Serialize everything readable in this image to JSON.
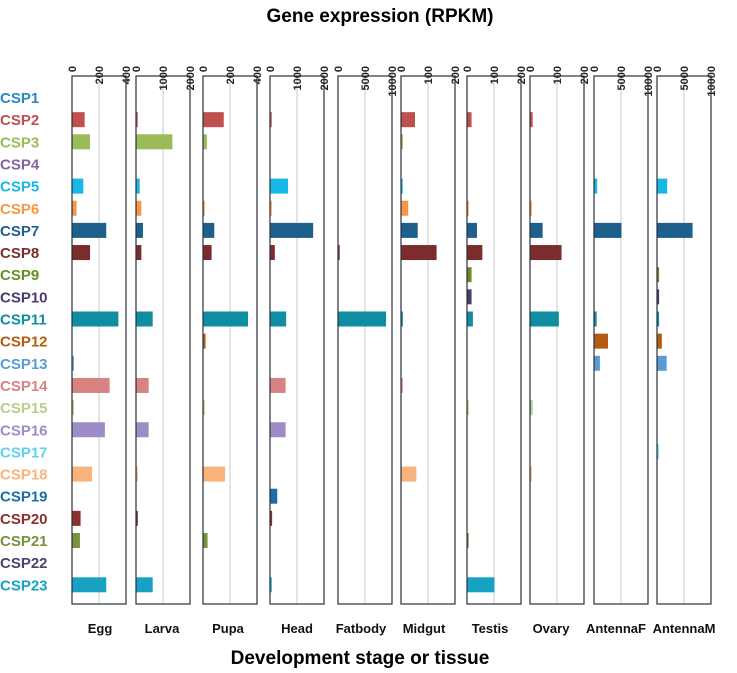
{
  "chart_data": {
    "type": "bar",
    "orientation": "horizontal",
    "title": "Gene expression (RPKM)",
    "xlabel": "Development stage or tissue",
    "categories": [
      "CSP1",
      "CSP2",
      "CSP3",
      "CSP4",
      "CSP5",
      "CSP6",
      "CSP7",
      "CSP8",
      "CSP9",
      "CSP10",
      "CSP11",
      "CSP12",
      "CSP13",
      "CSP14",
      "CSP15",
      "CSP16",
      "CSP17",
      "CSP18",
      "CSP19",
      "CSP20",
      "CSP21",
      "CSP22",
      "CSP23"
    ],
    "category_colors": [
      "#2e86c1",
      "#c0504d",
      "#9bbb59",
      "#8064a2",
      "#17b7e6",
      "#f79646",
      "#1f5f8b",
      "#7b2c2c",
      "#6b8e23",
      "#4b3b6b",
      "#0e8ea0",
      "#b35c0f",
      "#5b9bd5",
      "#d98282",
      "#b4d08a",
      "#9e8cc7",
      "#5fd3ec",
      "#fab27b",
      "#1c6ea4",
      "#8b2f2f",
      "#76923c",
      "#4d4270",
      "#17a2c4"
    ],
    "panels": [
      {
        "name": "Egg",
        "xlim": [
          0,
          400
        ],
        "ticks": [
          "0",
          "200",
          "400"
        ],
        "values": [
          0,
          90,
          130,
          0,
          80,
          30,
          250,
          130,
          0,
          0,
          340,
          0,
          10,
          275,
          10,
          240,
          0,
          145,
          0,
          60,
          55,
          0,
          250
        ]
      },
      {
        "name": "Larva",
        "xlim": [
          0,
          2000
        ],
        "ticks": [
          "0",
          "1000",
          "2000"
        ],
        "values": [
          0,
          40,
          1330,
          0,
          120,
          180,
          240,
          180,
          0,
          0,
          600,
          0,
          0,
          450,
          0,
          450,
          0,
          20,
          0,
          50,
          0,
          0,
          600
        ]
      },
      {
        "name": "Pupa",
        "xlim": [
          0,
          400
        ],
        "ticks": [
          "0",
          "200",
          "400"
        ],
        "values": [
          0,
          150,
          25,
          0,
          0,
          5,
          80,
          60,
          0,
          0,
          330,
          15,
          0,
          0,
          8,
          0,
          0,
          160,
          0,
          0,
          30,
          0,
          0
        ]
      },
      {
        "name": "Head",
        "xlim": [
          0,
          2000
        ],
        "ticks": [
          "0",
          "1000",
          "2000"
        ],
        "values": [
          0,
          40,
          0,
          0,
          650,
          40,
          1580,
          160,
          0,
          0,
          580,
          0,
          0,
          560,
          0,
          560,
          0,
          0,
          250,
          60,
          0,
          0,
          40
        ]
      },
      {
        "name": "Fatbody",
        "xlim": [
          0,
          10000
        ],
        "ticks": [
          "0",
          "5000",
          "10000"
        ],
        "values": [
          0,
          0,
          0,
          0,
          0,
          0,
          0,
          100,
          0,
          0,
          8800,
          0,
          0,
          0,
          0,
          0,
          0,
          0,
          0,
          0,
          0,
          0,
          0
        ]
      },
      {
        "name": "Midgut",
        "xlim": [
          0,
          200
        ],
        "ticks": [
          "0",
          "100",
          "200"
        ],
        "values": [
          0,
          50,
          5,
          0,
          2,
          25,
          60,
          130,
          0,
          0,
          5,
          0,
          0,
          3,
          0,
          0,
          0,
          55,
          0,
          0,
          0,
          0,
          0
        ]
      },
      {
        "name": "Testis",
        "xlim": [
          0,
          200
        ],
        "ticks": [
          "0",
          "100",
          "200"
        ],
        "values": [
          0,
          15,
          0,
          0,
          0,
          2,
          35,
          55,
          15,
          15,
          20,
          0,
          0,
          0,
          3,
          0,
          0,
          0,
          0,
          0,
          3,
          0,
          100
        ]
      },
      {
        "name": "Ovary",
        "xlim": [
          0,
          200
        ],
        "ticks": [
          "0",
          "100",
          "200"
        ],
        "values": [
          0,
          8,
          0,
          0,
          0,
          2,
          45,
          115,
          0,
          0,
          105,
          0,
          0,
          0,
          8,
          0,
          0,
          3,
          0,
          0,
          0,
          0,
          0
        ]
      },
      {
        "name": "AntennaF",
        "xlim": [
          0,
          10000
        ],
        "ticks": [
          "0",
          "5000",
          "10000"
        ],
        "values": [
          0,
          0,
          0,
          0,
          500,
          0,
          5000,
          0,
          0,
          0,
          400,
          2500,
          1000,
          0,
          0,
          0,
          0,
          0,
          0,
          0,
          0,
          0,
          0
        ]
      },
      {
        "name": "AntennaM",
        "xlim": [
          0,
          10000
        ],
        "ticks": [
          "0",
          "5000",
          "10000"
        ],
        "values": [
          0,
          0,
          0,
          0,
          1800,
          0,
          6500,
          0,
          300,
          300,
          300,
          800,
          1700,
          0,
          0,
          0,
          100,
          0,
          0,
          0,
          0,
          0,
          0
        ]
      }
    ]
  }
}
